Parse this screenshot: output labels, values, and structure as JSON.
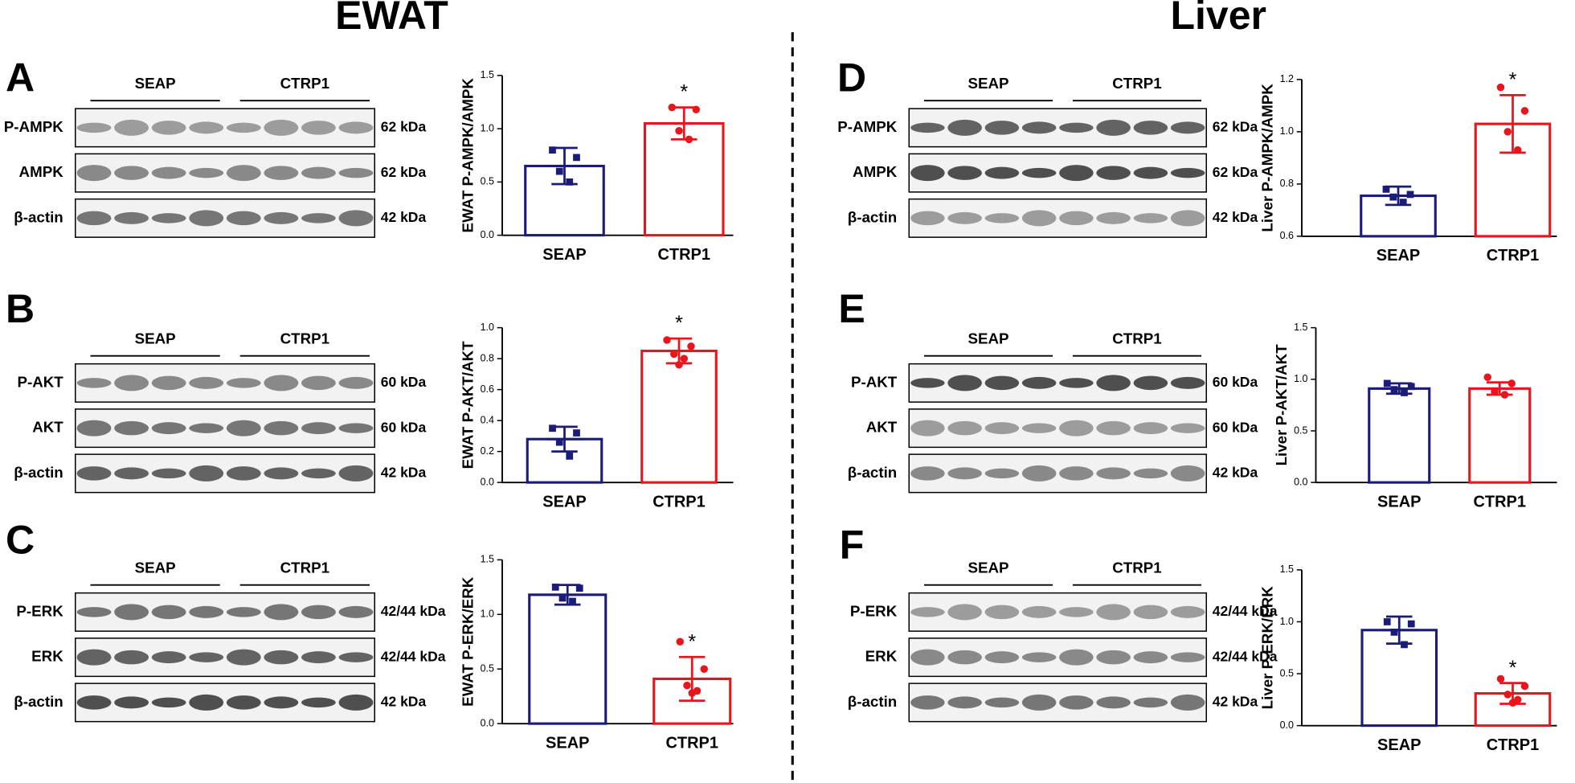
{
  "headings": [
    "EWAT",
    "Liver"
  ],
  "panels": [
    {
      "letter": "A",
      "groups": [
        "SEAP",
        "CTRP1"
      ],
      "rows": [
        {
          "label": "P-AMPK",
          "size": "62 kDa"
        },
        {
          "label": "AMPK",
          "size": "62 kDa"
        },
        {
          "label": "β-actin",
          "size": "42 kDa"
        }
      ]
    },
    {
      "letter": "B",
      "groups": [
        "SEAP",
        "CTRP1"
      ],
      "rows": [
        {
          "label": "P-AKT",
          "size": "60 kDa"
        },
        {
          "label": "AKT",
          "size": "60 kDa"
        },
        {
          "label": "β-actin",
          "size": "42 kDa"
        }
      ]
    },
    {
      "letter": "C",
      "groups": [
        "SEAP",
        "CTRP1"
      ],
      "rows": [
        {
          "label": "P-ERK",
          "size": "42/44 kDa"
        },
        {
          "label": "ERK",
          "size": "42/44 kDa"
        },
        {
          "label": "β-actin",
          "size": "42 kDa"
        }
      ]
    },
    {
      "letter": "D",
      "groups": [
        "SEAP",
        "CTRP1"
      ],
      "rows": [
        {
          "label": "P-AMPK",
          "size": "62 kDa"
        },
        {
          "label": "AMPK",
          "size": "62 kDa"
        },
        {
          "label": "β-actin",
          "size": "42 kDa"
        }
      ]
    },
    {
      "letter": "E",
      "groups": [
        "SEAP",
        "CTRP1"
      ],
      "rows": [
        {
          "label": "P-AKT",
          "size": "60 kDa"
        },
        {
          "label": "AKT",
          "size": "60 kDa"
        },
        {
          "label": "β-actin",
          "size": "42 kDa"
        }
      ]
    },
    {
      "letter": "F",
      "groups": [
        "SEAP",
        "CTRP1"
      ],
      "rows": [
        {
          "label": "P-ERK",
          "size": "42/44 kDa"
        },
        {
          "label": "ERK",
          "size": "42/44 kDa"
        },
        {
          "label": "β-actin",
          "size": "42 kDa"
        }
      ]
    }
  ],
  "chart_data": [
    {
      "type": "bar",
      "ylabel": "EWAT P-AMPK/AMPK",
      "categories": [
        "SEAP",
        "CTRP1"
      ],
      "colors": [
        "#1b1b7a",
        "#e8161c"
      ],
      "values": [
        0.65,
        1.05
      ],
      "errors": [
        0.17,
        0.15
      ],
      "points": [
        [
          0.8,
          0.73,
          0.6,
          0.5
        ],
        [
          1.2,
          1.18,
          0.98,
          0.9
        ]
      ],
      "significance": [
        null,
        "*"
      ],
      "ylim": [
        0,
        1.5
      ],
      "yticks": [
        {
          "value": 0,
          "label": "0.0"
        },
        0.5,
        {
          "value": 1,
          "label": "1.0"
        },
        1.5
      ]
    },
    {
      "type": "bar",
      "ylabel": "EWAT P-AKT/AKT",
      "categories": [
        "SEAP",
        "CTRP1"
      ],
      "colors": [
        "#1b1b7a",
        "#e8161c"
      ],
      "values": [
        0.28,
        0.85
      ],
      "errors": [
        0.08,
        0.08
      ],
      "points": [
        [
          0.35,
          0.32,
          0.26,
          0.17
        ],
        [
          0.92,
          0.88,
          0.83,
          0.8,
          0.76
        ]
      ],
      "significance": [
        null,
        "*"
      ],
      "ylim": [
        0,
        1
      ],
      "yticks": [
        {
          "value": 0,
          "label": "0.0"
        },
        0.2,
        0.4,
        0.6,
        0.8,
        {
          "value": 1,
          "label": "1.0"
        }
      ]
    },
    {
      "type": "bar",
      "ylabel": "EWAT P-ERK/ERK",
      "categories": [
        "SEAP",
        "CTRP1"
      ],
      "colors": [
        "#1b1b7a",
        "#e8161c"
      ],
      "values": [
        1.18,
        0.41
      ],
      "errors": [
        0.09,
        0.2
      ],
      "points": [
        [
          1.25,
          1.24,
          1.15,
          1.12
        ],
        [
          0.75,
          0.5,
          0.35,
          0.3,
          0.28
        ]
      ],
      "significance": [
        null,
        "*"
      ],
      "ylim": [
        0,
        1.5
      ],
      "yticks": [
        {
          "value": 0,
          "label": "0.0"
        },
        0.5,
        {
          "value": 1,
          "label": "1.0"
        },
        1.5
      ]
    },
    {
      "type": "bar",
      "ylabel": "Liver P-AMPK/AMPK",
      "categories": [
        "SEAP",
        "CTRP1"
      ],
      "colors": [
        "#1b1b7a",
        "#e8161c"
      ],
      "values": [
        0.755,
        1.03
      ],
      "errors": [
        0.035,
        0.11
      ],
      "points": [
        [
          0.78,
          0.76,
          0.75,
          0.73
        ],
        [
          1.17,
          1.08,
          1.0,
          0.93
        ]
      ],
      "significance": [
        null,
        "*"
      ],
      "ylim": [
        0.6,
        1.2
      ],
      "yticks": [
        0.6,
        0.8,
        {
          "value": 1,
          "label": "1.0"
        },
        1.2
      ]
    },
    {
      "type": "bar",
      "ylabel": "Liver P-AKT/AKT",
      "categories": [
        "SEAP",
        "CTRP1"
      ],
      "colors": [
        "#1b1b7a",
        "#e8161c"
      ],
      "values": [
        0.91,
        0.91
      ],
      "errors": [
        0.05,
        0.06
      ],
      "points": [
        [
          0.96,
          0.93,
          0.9,
          0.87
        ],
        [
          1.02,
          0.96,
          0.88,
          0.85
        ]
      ],
      "significance": [
        null,
        null
      ],
      "ylim": [
        0,
        1.5
      ],
      "yticks": [
        {
          "value": 0,
          "label": "0.0"
        },
        0.5,
        {
          "value": 1,
          "label": "1.0"
        },
        1.5
      ]
    },
    {
      "type": "bar",
      "ylabel": "Liver P-ERK/ERK",
      "categories": [
        "SEAP",
        "CTRP1"
      ],
      "colors": [
        "#1b1b7a",
        "#e8161c"
      ],
      "values": [
        0.92,
        0.31
      ],
      "errors": [
        0.13,
        0.1
      ],
      "points": [
        [
          1.0,
          0.98,
          0.9,
          0.78
        ],
        [
          0.45,
          0.38,
          0.3,
          0.25,
          0.22
        ]
      ],
      "significance": [
        null,
        "*"
      ],
      "ylim": [
        0,
        1.5
      ],
      "yticks": [
        {
          "value": 0,
          "label": "0.0"
        },
        0.5,
        {
          "value": 1,
          "label": "1.0"
        },
        1.5
      ]
    }
  ]
}
